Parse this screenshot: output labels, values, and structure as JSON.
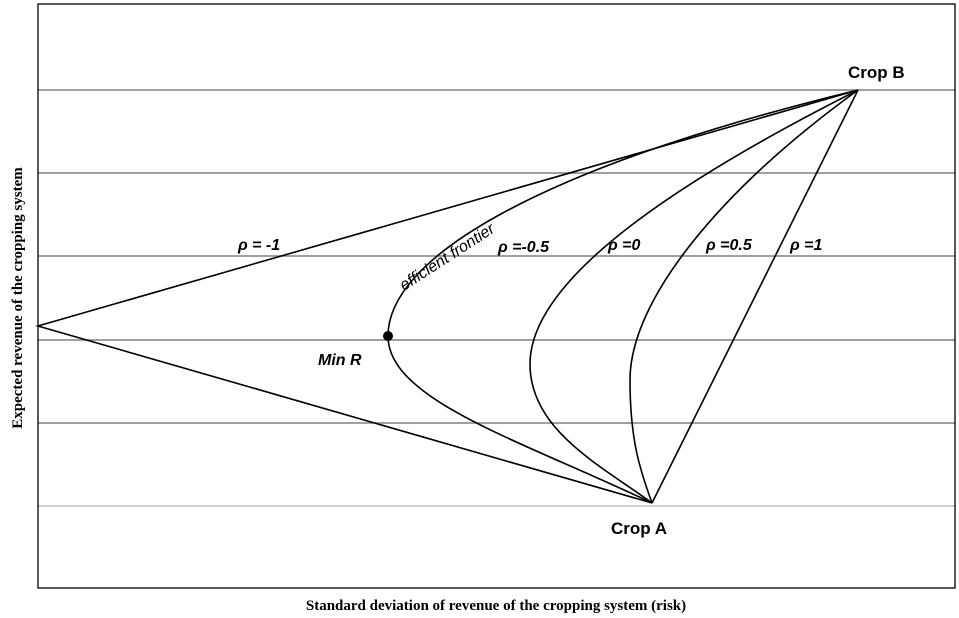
{
  "chart_data": {
    "type": "line",
    "title": "",
    "xlabel": "Standard deviation of revenue of the cropping system (risk)",
    "ylabel": "Expected revenue of the cropping system",
    "grid": true,
    "points": {
      "crop_a": "Crop A",
      "crop_b": "Crop B",
      "min_r": "Min R"
    },
    "frontier_label": "efficient frontier",
    "series": [
      {
        "name": "ρ = -1",
        "label": "ρ = -1"
      },
      {
        "name": "ρ =-0.5",
        "label": "ρ =-0.5"
      },
      {
        "name": "ρ =0",
        "label": "ρ =0"
      },
      {
        "name": "ρ =0.5",
        "label": "ρ =0.5"
      },
      {
        "name": "ρ =1",
        "label": "ρ =1"
      }
    ]
  }
}
